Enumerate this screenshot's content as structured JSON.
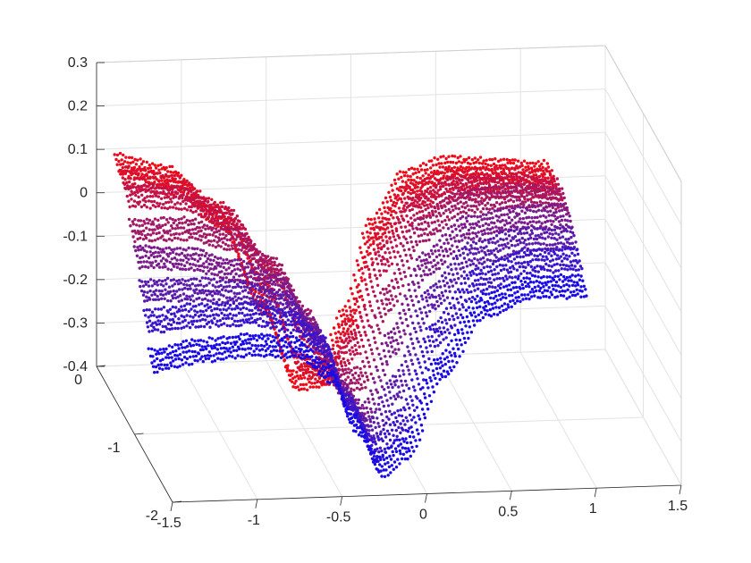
{
  "chart_data": {
    "type": "scatter",
    "projection": "3d",
    "title": "",
    "xlabel": "",
    "ylabel": "",
    "zlabel": "",
    "grid": true,
    "box": true,
    "xlim": [
      -1.5,
      1.5
    ],
    "ylim": [
      -2,
      0
    ],
    "zlim": [
      -0.4,
      0.3
    ],
    "x_ticks": [
      "-1.5",
      "-1",
      "-0.5",
      "0",
      "0.5",
      "1",
      "1.5"
    ],
    "y_ticks": [
      "-2",
      "-1",
      "0"
    ],
    "z_ticks": [
      "-0.4",
      "-0.3",
      "-0.2",
      "-0.1",
      "0",
      "0.1",
      "0.2",
      "0.3"
    ],
    "color_gradient": [
      "#ff0000",
      "#0000ff"
    ],
    "series": [
      {
        "color": "#ee0a18",
        "x": [
          -1.5,
          -1.2,
          -0.9,
          -0.65,
          -0.45,
          -0.3,
          -0.15,
          0,
          0.2,
          0.45,
          0.75,
          1.05
        ],
        "z": [
          0.15,
          0.12,
          0.02,
          -0.18,
          -0.36,
          -0.35,
          -0.22,
          -0.02,
          0.09,
          0.12,
          0.11,
          0.1
        ]
      },
      {
        "color": "#d81030",
        "x": [
          -1.5,
          -1.2,
          -0.9,
          -0.65,
          -0.45,
          -0.3,
          -0.15,
          0,
          0.2,
          0.45,
          0.75,
          1.05
        ],
        "z": [
          0.14,
          0.12,
          0.05,
          -0.12,
          -0.3,
          -0.33,
          -0.22,
          -0.02,
          0.08,
          0.11,
          0.11,
          0.1
        ]
      },
      {
        "color": "#c0124a",
        "x": [
          -1.5,
          -1.2,
          -0.9,
          -0.65,
          -0.45,
          -0.3,
          -0.15,
          0,
          0.2,
          0.45,
          0.75,
          1.05
        ],
        "z": [
          0.12,
          0.11,
          0.06,
          -0.06,
          -0.22,
          -0.3,
          -0.24,
          -0.05,
          0.07,
          0.11,
          0.11,
          0.1
        ]
      },
      {
        "color": "#a01866",
        "x": [
          -1.5,
          -1.2,
          -0.9,
          -0.65,
          -0.45,
          -0.3,
          -0.15,
          0,
          0.2,
          0.45,
          0.75,
          1.05
        ],
        "z": [
          0.06,
          0.06,
          0.03,
          -0.04,
          -0.16,
          -0.3,
          -0.3,
          -0.12,
          0.04,
          0.1,
          0.11,
          0.1
        ]
      },
      {
        "color": "#7a1a8c",
        "x": [
          -1.5,
          -1.2,
          -0.9,
          -0.65,
          -0.45,
          -0.3,
          -0.15,
          0,
          0.2,
          0.45,
          0.75,
          1.05
        ],
        "z": [
          0.02,
          0.01,
          -0.02,
          -0.06,
          -0.16,
          -0.3,
          -0.36,
          -0.2,
          -0.02,
          0.06,
          0.08,
          0.08
        ]
      },
      {
        "color": "#5a1aac",
        "x": [
          -1.5,
          -1.2,
          -0.9,
          -0.65,
          -0.45,
          -0.3,
          -0.15,
          0,
          0.2,
          0.45,
          0.75,
          1.05
        ],
        "z": [
          -0.04,
          -0.04,
          -0.05,
          -0.08,
          -0.16,
          -0.3,
          -0.38,
          -0.28,
          -0.08,
          0.02,
          0.05,
          0.05
        ]
      },
      {
        "color": "#3a14cc",
        "x": [
          -1.5,
          -1.2,
          -0.9,
          -0.65,
          -0.45,
          -0.3,
          -0.15,
          0,
          0.2,
          0.45,
          0.75,
          1.05
        ],
        "z": [
          -0.09,
          -0.08,
          -0.08,
          -0.1,
          -0.16,
          -0.3,
          -0.4,
          -0.34,
          -0.14,
          -0.02,
          0.02,
          0.02
        ]
      },
      {
        "color": "#1a0ae6",
        "x": [
          -1.5,
          -1.2,
          -0.9,
          -0.65,
          -0.45,
          -0.3,
          -0.15,
          0,
          0.2,
          0.45,
          0.75,
          1.05
        ],
        "z": [
          -0.16,
          -0.14,
          -0.13,
          -0.14,
          -0.2,
          -0.32,
          -0.42,
          -0.38,
          -0.2,
          -0.06,
          -0.02,
          -0.02
        ]
      }
    ]
  }
}
